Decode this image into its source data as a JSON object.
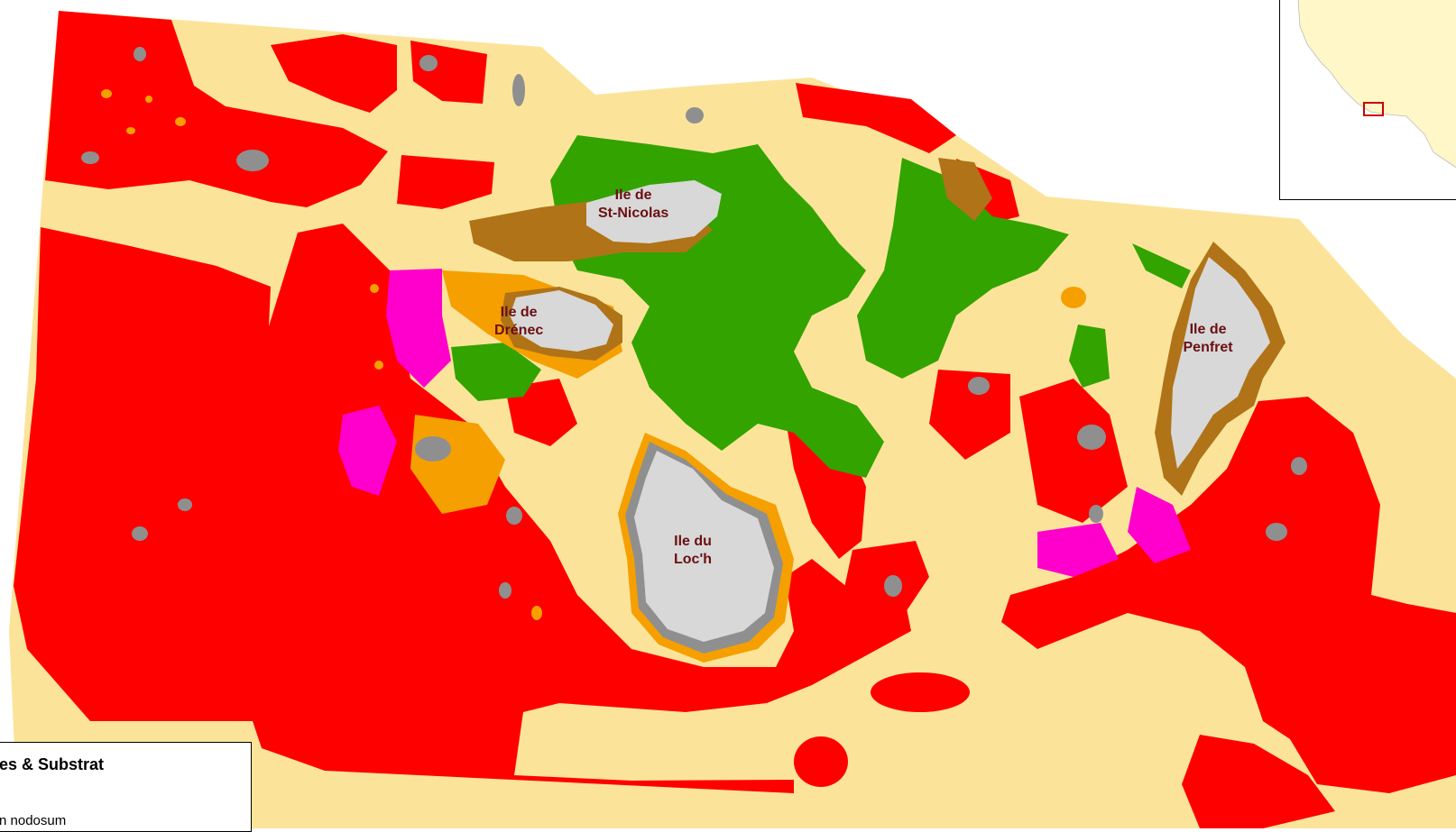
{
  "map": {
    "colors": {
      "sand": "#fbe49a",
      "red_zone": "#ff0000",
      "green_zone": "#33a300",
      "magenta_zone": "#ff00cc",
      "orange_zone": "#f5a000",
      "brown_zone": "#b07318",
      "gray_zone": "#8f8f8f",
      "island_land": "#d8d8d8",
      "label_text": "#6b0f12"
    },
    "islands": [
      {
        "line1": "Ile de",
        "line2": "St-Nicolas"
      },
      {
        "line1": "Ile de",
        "line2": "Drénec"
      },
      {
        "line1": "Ile du",
        "line2": "Loc'h"
      },
      {
        "line1": "Ile de",
        "line2": "Penfret"
      }
    ]
  },
  "legend": {
    "title": "es & Substrat",
    "item": "n nodosum"
  },
  "inset": {
    "land_color": "#fff7c8",
    "marker_color": "#cc0000"
  }
}
